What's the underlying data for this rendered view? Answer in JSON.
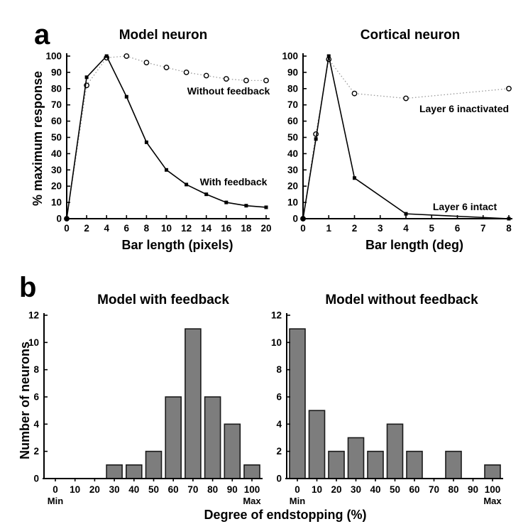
{
  "panels": {
    "a": "a",
    "b": "b"
  },
  "colors": {
    "axis": "#000000",
    "solid_line": "#000000",
    "dotted_line": "#999999",
    "marker_stroke": "#000000",
    "marker_fill": "#ffffff",
    "bar_fill": "#7d7d7d",
    "bar_stroke": "#1a1a1a",
    "text": "#000000",
    "background": "#ffffff"
  },
  "shared_labels": {
    "endstopping_xlabel": "Degree of endstopping (%)"
  },
  "chart_data": [
    {
      "id": "model-neuron",
      "type": "line",
      "title": "Model neuron",
      "xlabel": "Bar length (pixels)",
      "ylabel": "% maximum response",
      "xlim": [
        0,
        20
      ],
      "ylim": [
        0,
        100
      ],
      "xticks": [
        0,
        2,
        4,
        6,
        8,
        10,
        12,
        14,
        16,
        18,
        20
      ],
      "yticks": [
        0,
        10,
        20,
        30,
        40,
        50,
        60,
        70,
        80,
        90,
        100
      ],
      "grid": false,
      "legend_position": "inline-annotations",
      "series": [
        {
          "name": "Without feedback",
          "line": "dotted",
          "marker": "open-circle",
          "x": [
            0,
            2,
            4,
            6,
            8,
            10,
            12,
            14,
            16,
            18,
            20
          ],
          "y": [
            0,
            82,
            99,
            100,
            96,
            93,
            90,
            88,
            86,
            85,
            85
          ]
        },
        {
          "name": "With feedback",
          "line": "solid",
          "marker": "filled-square",
          "x": [
            0,
            2,
            4,
            6,
            8,
            10,
            12,
            14,
            16,
            18,
            20
          ],
          "y": [
            0,
            87,
            100,
            75,
            47,
            30,
            21,
            15,
            10,
            8,
            7
          ]
        }
      ]
    },
    {
      "id": "cortical-neuron",
      "type": "line",
      "title": "Cortical neuron",
      "xlabel": "Bar length (deg)",
      "ylabel": "",
      "xlim": [
        0,
        8
      ],
      "ylim": [
        0,
        100
      ],
      "xticks": [
        0,
        1,
        2,
        3,
        4,
        5,
        6,
        7,
        8
      ],
      "yticks": [
        0,
        10,
        20,
        30,
        40,
        50,
        60,
        70,
        80,
        90,
        100
      ],
      "grid": false,
      "legend_position": "inline-annotations",
      "series": [
        {
          "name": "Layer 6 inactivated",
          "line": "dotted",
          "marker": "open-circle",
          "x": [
            0,
            0.5,
            1,
            2,
            4,
            8
          ],
          "y": [
            0,
            52,
            98,
            77,
            74,
            80
          ]
        },
        {
          "name": "Layer 6 intact",
          "line": "solid",
          "marker": "filled-square",
          "x": [
            0,
            0.5,
            1,
            2,
            4,
            8
          ],
          "y": [
            0,
            49,
            100,
            25,
            3,
            0
          ]
        }
      ]
    },
    {
      "id": "model-with-feedback",
      "type": "bar",
      "title": "Model with feedback",
      "xlabel": "",
      "ylabel": "Number of neurons",
      "categories": [
        "0",
        "10",
        "20",
        "30",
        "40",
        "50",
        "60",
        "70",
        "80",
        "90",
        "100"
      ],
      "values": [
        0,
        0,
        0,
        1,
        1,
        2,
        6,
        11,
        6,
        4,
        1
      ],
      "ylim": [
        0,
        12
      ],
      "yticks": [
        0,
        2,
        4,
        6,
        8,
        10,
        12
      ],
      "grid": false,
      "min_label": "Min",
      "max_label": "Max"
    },
    {
      "id": "model-without-feedback",
      "type": "bar",
      "title": "Model without feedback",
      "xlabel": "",
      "ylabel": "",
      "categories": [
        "0",
        "10",
        "20",
        "30",
        "40",
        "50",
        "60",
        "70",
        "80",
        "90",
        "100"
      ],
      "values": [
        11,
        5,
        2,
        3,
        2,
        4,
        2,
        0,
        2,
        0,
        1
      ],
      "ylim": [
        0,
        12
      ],
      "yticks": [
        0,
        2,
        4,
        6,
        8,
        10,
        12
      ],
      "grid": false,
      "min_label": "Min",
      "max_label": "Max"
    }
  ]
}
